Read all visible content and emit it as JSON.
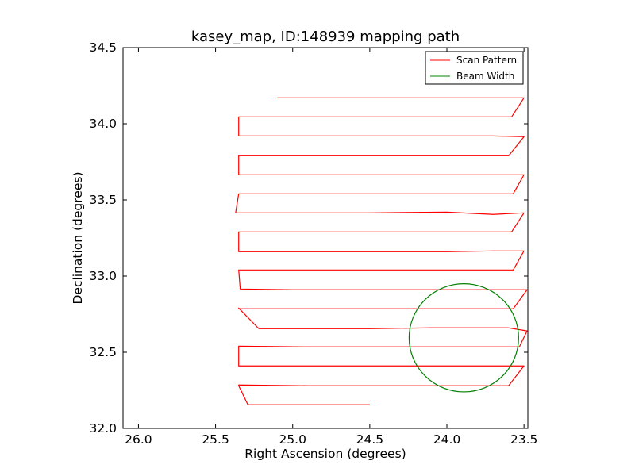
{
  "chart_data": {
    "type": "line",
    "title": "kasey_map, ID:148939 mapping path",
    "xlabel": "Right Ascension (degrees)",
    "ylabel": "Declination (degrees)",
    "xlim": [
      26.1,
      23.475
    ],
    "ylim": [
      32.0,
      34.5
    ],
    "x_inverted": true,
    "xticks": [
      26.0,
      25.5,
      25.0,
      24.5,
      24.0,
      23.5
    ],
    "xtick_labels": [
      "26.0",
      "25.5",
      "25.0",
      "24.5",
      "24.0",
      "23.5"
    ],
    "yticks": [
      32.0,
      32.5,
      33.0,
      33.5,
      34.0,
      34.5
    ],
    "ytick_labels": [
      "32.0",
      "32.5",
      "33.0",
      "33.5",
      "34.0",
      "34.5"
    ],
    "grid": false,
    "legend_position": "top-right",
    "series": [
      {
        "name": "Scan Pattern",
        "color": "#ff0000",
        "kind": "path",
        "x": [
          24.5,
          25.0,
          25.29,
          25.35,
          25.35,
          24.9,
          24.0,
          23.6,
          23.5,
          25.25,
          25.35,
          25.35,
          24.9,
          24.0,
          23.53,
          23.48,
          23.6,
          24.1,
          24.5,
          25.0,
          25.22,
          25.35,
          25.35,
          25.0,
          24.5,
          24.0,
          23.57,
          23.48,
          23.6,
          24.1,
          24.5,
          25.0,
          25.34,
          25.35,
          25.35,
          25.0,
          24.5,
          23.57,
          23.5,
          23.7,
          24.0,
          25.26,
          25.35,
          25.35,
          25.0,
          24.5,
          24.0,
          23.58,
          23.5,
          23.7,
          24.0,
          24.5,
          25.37,
          25.35,
          25.0,
          24.5,
          23.57,
          23.5,
          23.7,
          24.0,
          25.24,
          25.35,
          25.35,
          24.9,
          24.0,
          23.6,
          23.5,
          23.7,
          24.0,
          25.28,
          25.35,
          25.35,
          24.9,
          24.0,
          23.58,
          23.5,
          23.75,
          24.2,
          25.1
        ],
        "y": [
          32.155,
          32.155,
          32.155,
          32.28,
          32.285,
          32.28,
          32.28,
          32.28,
          32.41,
          32.41,
          32.41,
          32.54,
          32.535,
          32.535,
          32.535,
          32.64,
          32.66,
          32.66,
          32.655,
          32.655,
          32.655,
          32.79,
          32.785,
          32.785,
          32.785,
          32.785,
          32.785,
          32.91,
          32.91,
          32.91,
          32.91,
          32.91,
          32.915,
          33.04,
          33.04,
          33.04,
          33.04,
          33.04,
          33.165,
          33.165,
          33.16,
          33.16,
          33.16,
          33.29,
          33.29,
          33.29,
          33.29,
          33.29,
          33.415,
          33.405,
          33.42,
          33.415,
          33.415,
          33.54,
          33.54,
          33.54,
          33.54,
          33.665,
          33.665,
          33.665,
          33.665,
          33.665,
          33.79,
          33.79,
          33.79,
          33.79,
          33.915,
          33.92,
          33.92,
          33.92,
          33.92,
          34.045,
          34.045,
          34.045,
          34.045,
          34.17,
          34.17,
          34.17,
          34.17
        ]
      },
      {
        "name": "Beam Width",
        "color": "#008000",
        "kind": "circle",
        "center": [
          23.89,
          32.595
        ],
        "radius_deg": 0.355
      }
    ]
  }
}
